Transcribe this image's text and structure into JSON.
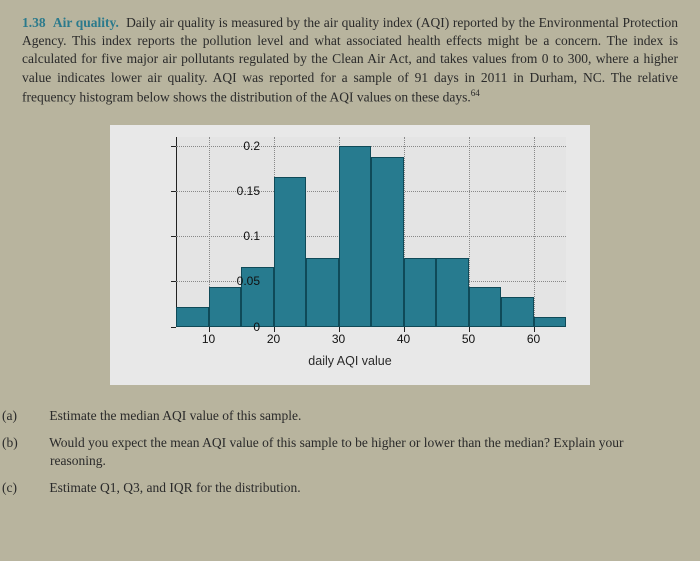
{
  "problem": {
    "number": "1.38",
    "title": "Air quality.",
    "text": "Daily air quality is measured by the air quality index (AQI) reported by the Environmental Protection Agency. This index reports the pollution level and what associated health effects might be a concern. The index is calculated for five major air pollutants regulated by the Clean Air Act, and takes values from 0 to 300, where a higher value indicates lower air quality. AQI was reported for a sample of 91 days in 2011 in Durham, NC. The relative frequency histogram below shows the distribution of the AQI values on these days.",
    "citation": "64"
  },
  "chart": {
    "type": "histogram",
    "xlabel": "daily AQI value",
    "x_start": 5,
    "x_end": 65,
    "bin_width": 5,
    "xticks": [
      10,
      20,
      30,
      40,
      50,
      60
    ],
    "yticks": [
      0,
      0.05,
      0.1,
      0.15,
      0.2
    ],
    "ytick_labels": [
      "0",
      "0.05",
      "0.1",
      "0.15",
      "0.2"
    ],
    "ylim": [
      0,
      0.21
    ],
    "values": [
      0.022,
      0.044,
      0.066,
      0.165,
      0.076,
      0.2,
      0.187,
      0.076,
      0.076,
      0.044,
      0.033,
      0.011
    ],
    "bar_fill": "#277b8f",
    "bar_border": "#0f4a58",
    "plot_bg": "#e4e4e4",
    "panel_bg": "#e8e8e8",
    "grid_color": "#888888",
    "tick_fontsize": 12,
    "label_fontsize": 12.5
  },
  "questions": {
    "a": {
      "label": "(a)",
      "text": "Estimate the median AQI value of this sample."
    },
    "b": {
      "label": "(b)",
      "text": "Would you expect the mean AQI value of this sample to be higher or lower than the median? Explain your reasoning."
    },
    "c": {
      "label": "(c)",
      "text": "Estimate Q1, Q3, and IQR for the distribution."
    }
  },
  "page": {
    "background": "#b8b49e",
    "text_color": "#2a2a2a",
    "accent_color": "#2b7a8c"
  }
}
